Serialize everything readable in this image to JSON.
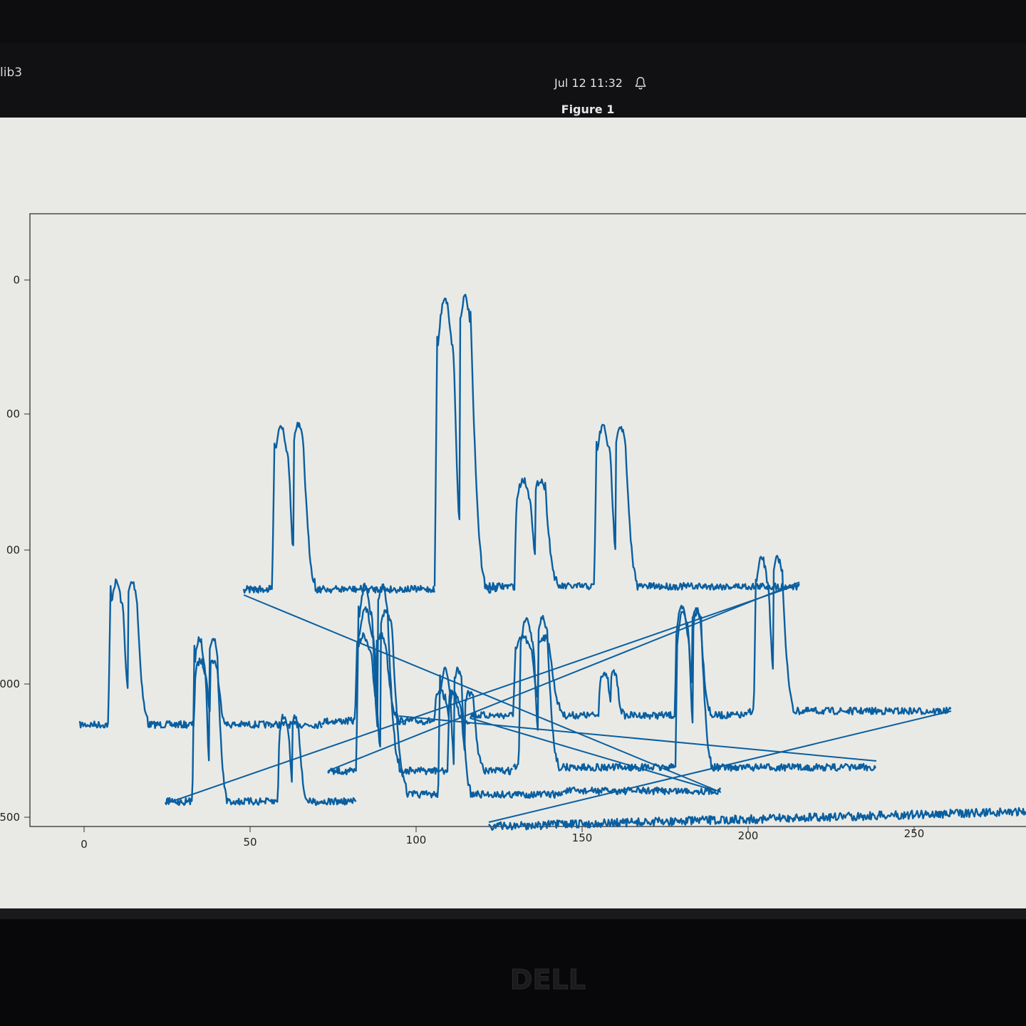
{
  "topbar": {
    "app_name": "lib3",
    "clock": "Jul 12  11:32"
  },
  "window": {
    "title": "Figure 1"
  },
  "chart_data": {
    "type": "line",
    "title": "",
    "xlabel": "",
    "ylabel": "",
    "x_ticks": [
      "0",
      "50",
      "100",
      "150",
      "200",
      "250"
    ],
    "y_ticks": [
      "0",
      "00",
      "00",
      "000",
      "500"
    ],
    "xlim": [
      -15,
      285
    ],
    "grid": false,
    "color": "#0a5fa0",
    "series": [
      {
        "x": [
          0,
          8,
          9,
          12,
          13,
          14,
          15,
          17,
          20,
          55,
          56,
          58,
          60,
          62,
          64,
          66,
          68,
          72
        ],
        "y": [
          100,
          100,
          300,
          310,
          350,
          300,
          350,
          200,
          120,
          120,
          180,
          200,
          170,
          210,
          190,
          150,
          120,
          120
        ]
      },
      {
        "x": [
          48,
          56,
          57,
          59,
          61,
          63,
          65,
          68,
          73,
          100,
          106,
          107,
          109,
          111,
          113,
          115,
          118,
          122,
          215
        ],
        "y": [
          250,
          250,
          350,
          420,
          390,
          430,
          400,
          270,
          250,
          250,
          250,
          450,
          560,
          520,
          580,
          420,
          380,
          250,
          250
        ]
      }
    ]
  },
  "colors": {
    "line": "#0a5fa0",
    "background": "#e9eae6"
  }
}
